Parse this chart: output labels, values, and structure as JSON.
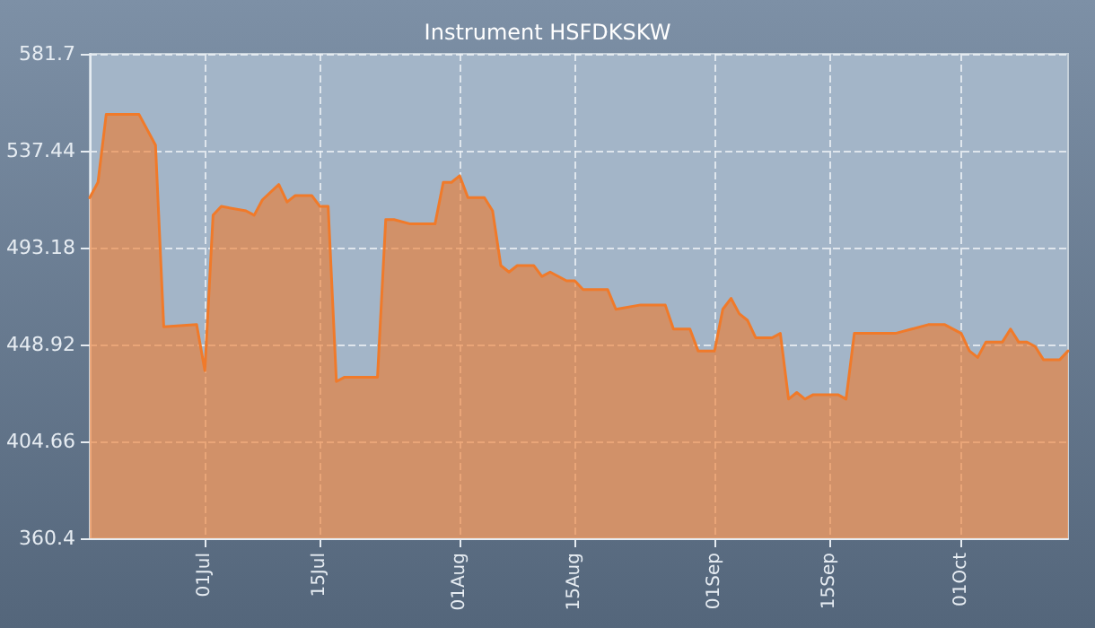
{
  "chart_data": {
    "type": "area",
    "title": "Instrument HSFDKSKW",
    "x": [
      "--06-17",
      "--06-18",
      "--06-19",
      "--06-23",
      "--06-25",
      "--06-26",
      "--06-30",
      "--07-01",
      "--07-02",
      "--07-03",
      "--07-06",
      "--07-07",
      "--07-08",
      "--07-10",
      "--07-11",
      "--07-12",
      "--07-14",
      "--07-15",
      "--07-16",
      "--07-17",
      "--07-18",
      "--07-22",
      "--07-23",
      "--07-24",
      "--07-26",
      "--07-29",
      "--07-30",
      "--07-31",
      "--08-01",
      "--08-02",
      "--08-04",
      "--08-05",
      "--08-06",
      "--08-07",
      "--08-08",
      "--08-10",
      "--08-11",
      "--08-12",
      "--08-14",
      "--08-15",
      "--08-16",
      "--08-19",
      "--08-20",
      "--08-23",
      "--08-26",
      "--08-27",
      "--08-29",
      "--08-30",
      "--09-01",
      "--09-02",
      "--09-03",
      "--09-04",
      "--09-05",
      "--09-06",
      "--09-08",
      "--09-09",
      "--09-10",
      "--09-11",
      "--09-12",
      "--09-13",
      "--09-16",
      "--09-17",
      "--09-18",
      "--09-21",
      "--09-23",
      "--09-24",
      "--09-25",
      "--09-27",
      "--09-29",
      "--10-01",
      "--10-02",
      "--10-03",
      "--10-04",
      "--10-06",
      "--10-07",
      "--10-08",
      "--10-09",
      "--10-10",
      "--10-11",
      "--10-13",
      "--10-14"
    ],
    "series": [
      {
        "color": "#f07a2a",
        "values": [
          516,
          523,
          554,
          554,
          540,
          457,
          458,
          437,
          508,
          512,
          510,
          508,
          515,
          522,
          514,
          517,
          517,
          512,
          512,
          432,
          434,
          434,
          506,
          506,
          504,
          504,
          523,
          523,
          526,
          516,
          516,
          510,
          485,
          482,
          485,
          485,
          480,
          482,
          478,
          478,
          474,
          474,
          465,
          467,
          467,
          456,
          456,
          446,
          446,
          465,
          470,
          463,
          460,
          452,
          452,
          454,
          424,
          427,
          424,
          426,
          426,
          424,
          454,
          454,
          454,
          455,
          456,
          458,
          458,
          454,
          446,
          443,
          450,
          450,
          456,
          450,
          450,
          448,
          442,
          442,
          446
        ]
      }
    ],
    "xlim": [
      "--06-17",
      "--10-14"
    ],
    "xticks": [
      {
        "value": "--07-01",
        "label": "01Jul"
      },
      {
        "value": "--07-15",
        "label": "15Jul"
      },
      {
        "value": "--08-01",
        "label": "01Aug"
      },
      {
        "value": "--08-15",
        "label": "15Aug"
      },
      {
        "value": "--09-01",
        "label": "01Sep"
      },
      {
        "value": "--09-15",
        "label": "15Sep"
      },
      {
        "value": "--10-01",
        "label": "01Oct"
      }
    ],
    "ylim": [
      360.4,
      581.7
    ],
    "yticks": [
      360.4,
      404.66,
      448.92,
      493.18,
      537.44,
      581.7
    ],
    "grid": true,
    "marker": "none",
    "line_style": "solid"
  }
}
